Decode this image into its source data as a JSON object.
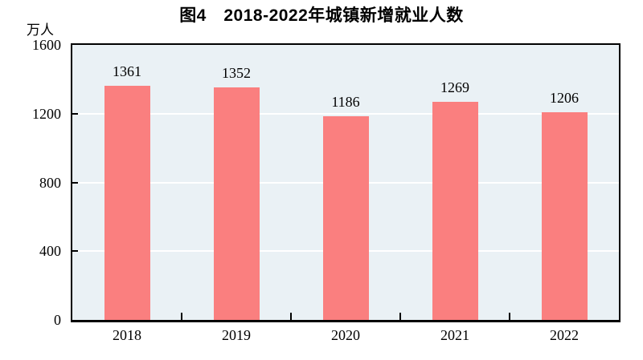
{
  "chart_data": {
    "type": "bar",
    "title": "图4　2018-2022年城镇新增就业人数",
    "ylabel": "万人",
    "xlabel": "",
    "categories": [
      "2018",
      "2019",
      "2020",
      "2021",
      "2022"
    ],
    "values": [
      1361,
      1352,
      1186,
      1269,
      1206
    ],
    "value_labels_shown": true,
    "yticks": [
      0,
      400,
      800,
      1200,
      1600
    ],
    "ylim": [
      0,
      1600
    ],
    "grid": "horizontal",
    "legend": "none",
    "colors": {
      "bar": "#FA7F7F",
      "plot_background": "#EAF1F5",
      "gridline": "#FFFFFF",
      "axis": "#000000",
      "text": "#000000",
      "page_background": "#FFFFFF"
    }
  }
}
